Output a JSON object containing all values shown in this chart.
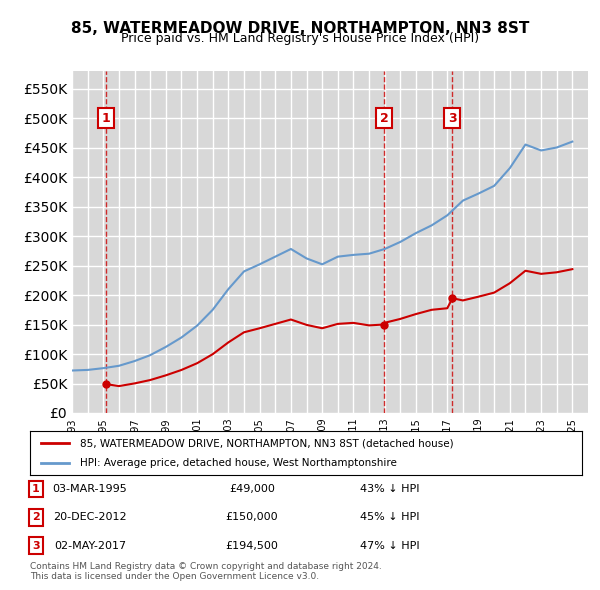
{
  "title": "85, WATERMEADOW DRIVE, NORTHAMPTON, NN3 8ST",
  "subtitle": "Price paid vs. HM Land Registry's House Price Index (HPI)",
  "legend_label_red": "85, WATERMEADOW DRIVE, NORTHAMPTON, NN3 8ST (detached house)",
  "legend_label_blue": "HPI: Average price, detached house, West Northamptonshire",
  "table_rows": [
    {
      "num": "1",
      "date": "03-MAR-1995",
      "price": "£49,000",
      "pct": "43% ↓ HPI"
    },
    {
      "num": "2",
      "date": "20-DEC-2012",
      "price": "£150,000",
      "pct": "45% ↓ HPI"
    },
    {
      "num": "3",
      "date": "02-MAY-2017",
      "price": "£194,500",
      "pct": "47% ↓ HPI"
    }
  ],
  "footer": "Contains HM Land Registry data © Crown copyright and database right 2024.\nThis data is licensed under the Open Government Licence v3.0.",
  "transactions": [
    {
      "year": 1995.17,
      "price": 49000
    },
    {
      "year": 2012.97,
      "price": 150000
    },
    {
      "year": 2017.33,
      "price": 194500
    }
  ],
  "vline_dates": [
    1995.17,
    2012.97,
    2017.33
  ],
  "background_color": "#ffffff",
  "plot_bg_color": "#f0f0f0",
  "hatch_color": "#d8d8d8",
  "grid_color": "#ffffff",
  "red_color": "#cc0000",
  "blue_color": "#6699cc",
  "ylim": [
    0,
    580000
  ],
  "yticks": [
    0,
    50000,
    100000,
    150000,
    200000,
    250000,
    300000,
    350000,
    400000,
    450000,
    500000,
    550000
  ],
  "xmin": 1993,
  "xmax": 2026
}
